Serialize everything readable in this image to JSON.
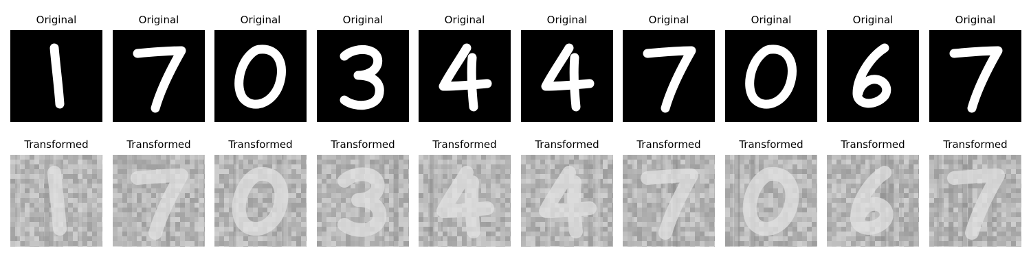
{
  "rows": [
    {
      "title": "Original",
      "style": "digit",
      "digits": [
        "1",
        "7",
        "0",
        "3",
        "4",
        "4",
        "7",
        "0",
        "6",
        "7"
      ]
    },
    {
      "title": "Transformed",
      "style": "noisy",
      "digits": [
        "1",
        "7",
        "0",
        "3",
        "4",
        "4",
        "7",
        "0",
        "6",
        "7"
      ]
    }
  ],
  "colors": {
    "digit_background": "#000000",
    "digit_stroke": "#ffffff",
    "noisy_background": "#b4b4b4",
    "noisy_stroke": "#e2e2e2"
  }
}
